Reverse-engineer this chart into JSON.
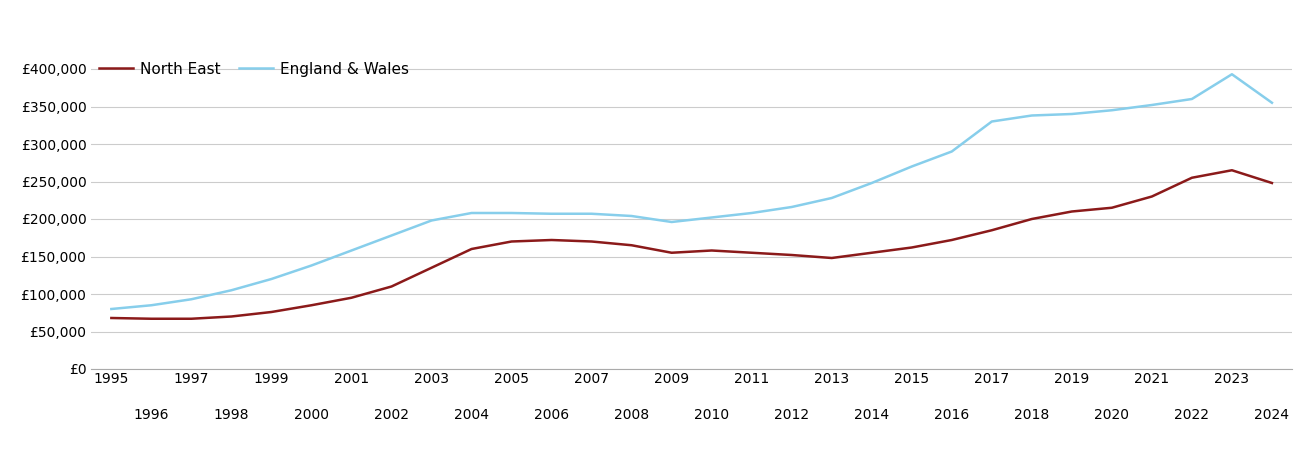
{
  "north_east": {
    "years": [
      1995,
      1996,
      1997,
      1998,
      1999,
      2000,
      2001,
      2002,
      2003,
      2004,
      2005,
      2006,
      2007,
      2008,
      2009,
      2010,
      2011,
      2012,
      2013,
      2014,
      2015,
      2016,
      2017,
      2018,
      2019,
      2020,
      2021,
      2022,
      2023,
      2024
    ],
    "values": [
      68000,
      67000,
      67000,
      70000,
      76000,
      85000,
      95000,
      110000,
      135000,
      160000,
      170000,
      172000,
      170000,
      165000,
      155000,
      158000,
      155000,
      152000,
      148000,
      155000,
      162000,
      172000,
      185000,
      200000,
      210000,
      215000,
      230000,
      255000,
      265000,
      248000
    ]
  },
  "england_wales": {
    "years": [
      1995,
      1996,
      1997,
      1998,
      1999,
      2000,
      2001,
      2002,
      2003,
      2004,
      2005,
      2006,
      2007,
      2008,
      2009,
      2010,
      2011,
      2012,
      2013,
      2014,
      2015,
      2016,
      2017,
      2018,
      2019,
      2020,
      2021,
      2022,
      2023,
      2024
    ],
    "values": [
      80000,
      85000,
      93000,
      105000,
      120000,
      138000,
      158000,
      178000,
      198000,
      208000,
      208000,
      207000,
      207000,
      204000,
      196000,
      202000,
      208000,
      216000,
      228000,
      248000,
      270000,
      290000,
      330000,
      338000,
      340000,
      345000,
      352000,
      360000,
      393000,
      355000
    ]
  },
  "north_east_color": "#8B1A1A",
  "england_wales_color": "#87CEEB",
  "north_east_label": "North East",
  "england_wales_label": "England & Wales",
  "ylim": [
    0,
    420000
  ],
  "ytick_values": [
    0,
    50000,
    100000,
    150000,
    200000,
    250000,
    300000,
    350000,
    400000
  ],
  "xlim_min": 1994.5,
  "xlim_max": 2024.5,
  "odd_years": [
    1995,
    1997,
    1999,
    2001,
    2003,
    2005,
    2007,
    2009,
    2011,
    2013,
    2015,
    2017,
    2019,
    2021,
    2023
  ],
  "even_years": [
    1996,
    1998,
    2000,
    2002,
    2004,
    2006,
    2008,
    2010,
    2012,
    2014,
    2016,
    2018,
    2020,
    2022,
    2024
  ],
  "line_width": 1.8,
  "bg_color": "#ffffff",
  "grid_color": "#cccccc",
  "tick_fontsize": 10,
  "legend_fontsize": 11
}
